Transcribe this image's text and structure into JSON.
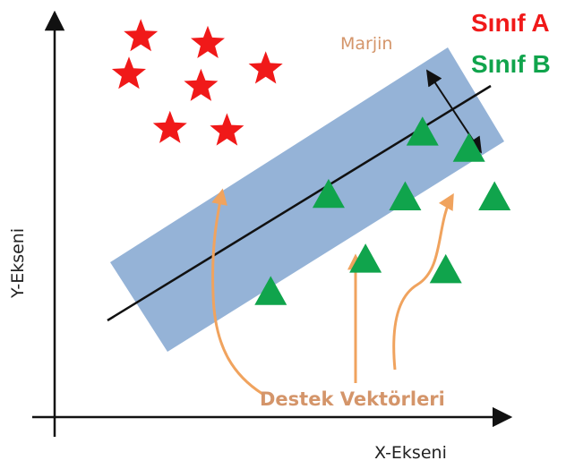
{
  "legend": {
    "class_a_label": "Sınıf A",
    "class_b_label": "Sınıf B",
    "class_a_color": "#f01919",
    "class_b_color": "#10a44c"
  },
  "axes": {
    "x_label": "X-Ekseni",
    "y_label": "Y-Ekseni"
  },
  "annotations": {
    "margin_label": "Marjin",
    "support_vectors_label": "Destek Vektörleri",
    "annotation_color": "#d4956a",
    "arrow_color": "#f0a35e"
  },
  "margin_band_color": "#95b3d7",
  "class_a_points": [
    {
      "x": 18.9,
      "y": 94.0
    },
    {
      "x": 33.6,
      "y": 92.3
    },
    {
      "x": 16.3,
      "y": 84.7
    },
    {
      "x": 32.1,
      "y": 81.7
    },
    {
      "x": 46.3,
      "y": 86.0
    },
    {
      "x": 25.3,
      "y": 71.3
    },
    {
      "x": 37.8,
      "y": 70.7
    }
  ],
  "class_b_points": [
    {
      "x": 80.7,
      "y": 70.7
    },
    {
      "x": 90.9,
      "y": 66.7
    },
    {
      "x": 60.1,
      "y": 55.3
    },
    {
      "x": 76.9,
      "y": 54.7
    },
    {
      "x": 96.5,
      "y": 54.7
    },
    {
      "x": 68.2,
      "y": 39.3
    },
    {
      "x": 85.8,
      "y": 36.7
    },
    {
      "x": 47.4,
      "y": 31.3
    }
  ]
}
